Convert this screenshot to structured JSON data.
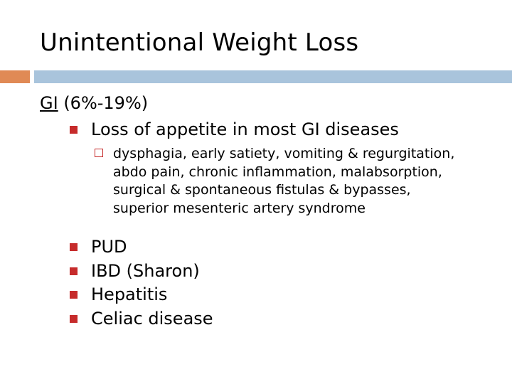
{
  "slide": {
    "title": "Unintentional Weight Loss",
    "heading_underlined": "GI",
    "heading_rest": " (6%-19%)",
    "bullets": [
      "Loss of appetite in most GI diseases",
      "PUD",
      "IBD (Sharon)",
      "Hepatitis",
      "Celiac disease"
    ],
    "sub_bullet": "dysphagia, early satiety, vomiting & regurgitation, abdo pain, chronic inflammation, malabsorption, surgical & spontaneous fistulas & bypasses, superior mesenteric artery syndrome"
  },
  "colors": {
    "accent_orange": "#e08a55",
    "accent_blue": "#a9c4dc",
    "bullet_red": "#c62b2b"
  },
  "icons": {
    "level1_bullet": "filled-square-bullet-icon",
    "level2_bullet": "hollow-square-bullet-icon"
  }
}
